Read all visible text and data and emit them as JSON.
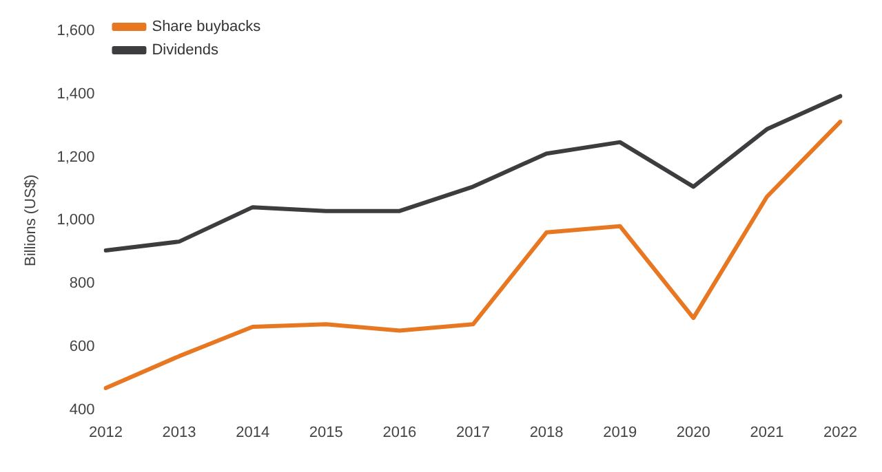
{
  "chart_data": {
    "type": "line",
    "ylabel": "Billions (US$)",
    "categories": [
      "2012",
      "2013",
      "2014",
      "2015",
      "2016",
      "2017",
      "2018",
      "2019",
      "2020",
      "2021",
      "2022"
    ],
    "series": [
      {
        "name": "Share buybacks",
        "color": "#e87722",
        "values": [
          469,
          570,
          663,
          671,
          651,
          671,
          962,
          982,
          691,
          1075,
          1313
        ]
      },
      {
        "name": "Dividends",
        "color": "#3d3d40",
        "values": [
          905,
          933,
          1042,
          1030,
          1030,
          1107,
          1212,
          1248,
          1107,
          1289,
          1394
        ]
      }
    ],
    "ylim": [
      400,
      1600
    ],
    "yticks": [
      400,
      600,
      800,
      {
        "value": 1000,
        "label": "1,000"
      },
      {
        "value": 1200,
        "label": "1,200"
      },
      {
        "value": 1400,
        "label": "1,400"
      },
      {
        "value": 1600,
        "label": "1,600"
      }
    ],
    "grid": false,
    "legend": "top left",
    "marker": "none",
    "line_style": "solid"
  }
}
